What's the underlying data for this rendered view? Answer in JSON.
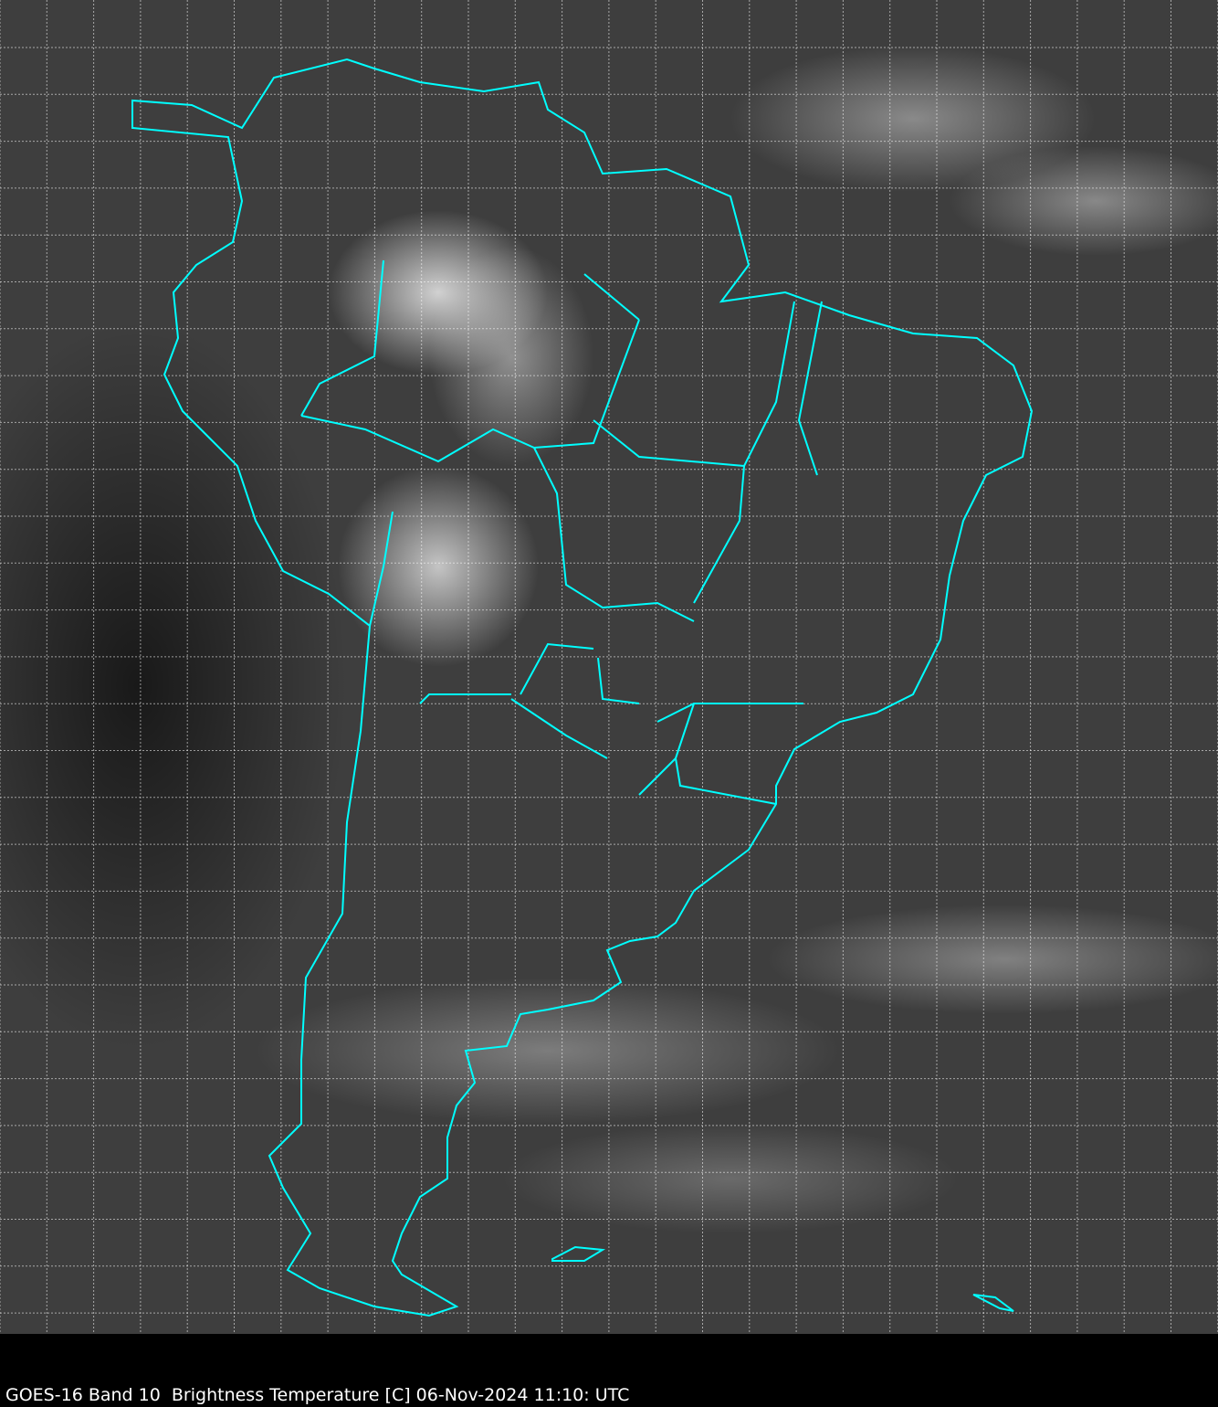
{
  "caption": "GOES-16 Band 10  Brightness Temperature [C] 06-Nov-2024 11:10: UTC",
  "colors": {
    "borders": "#00ffff",
    "grid": "#ffffff",
    "background": "#000000"
  }
}
